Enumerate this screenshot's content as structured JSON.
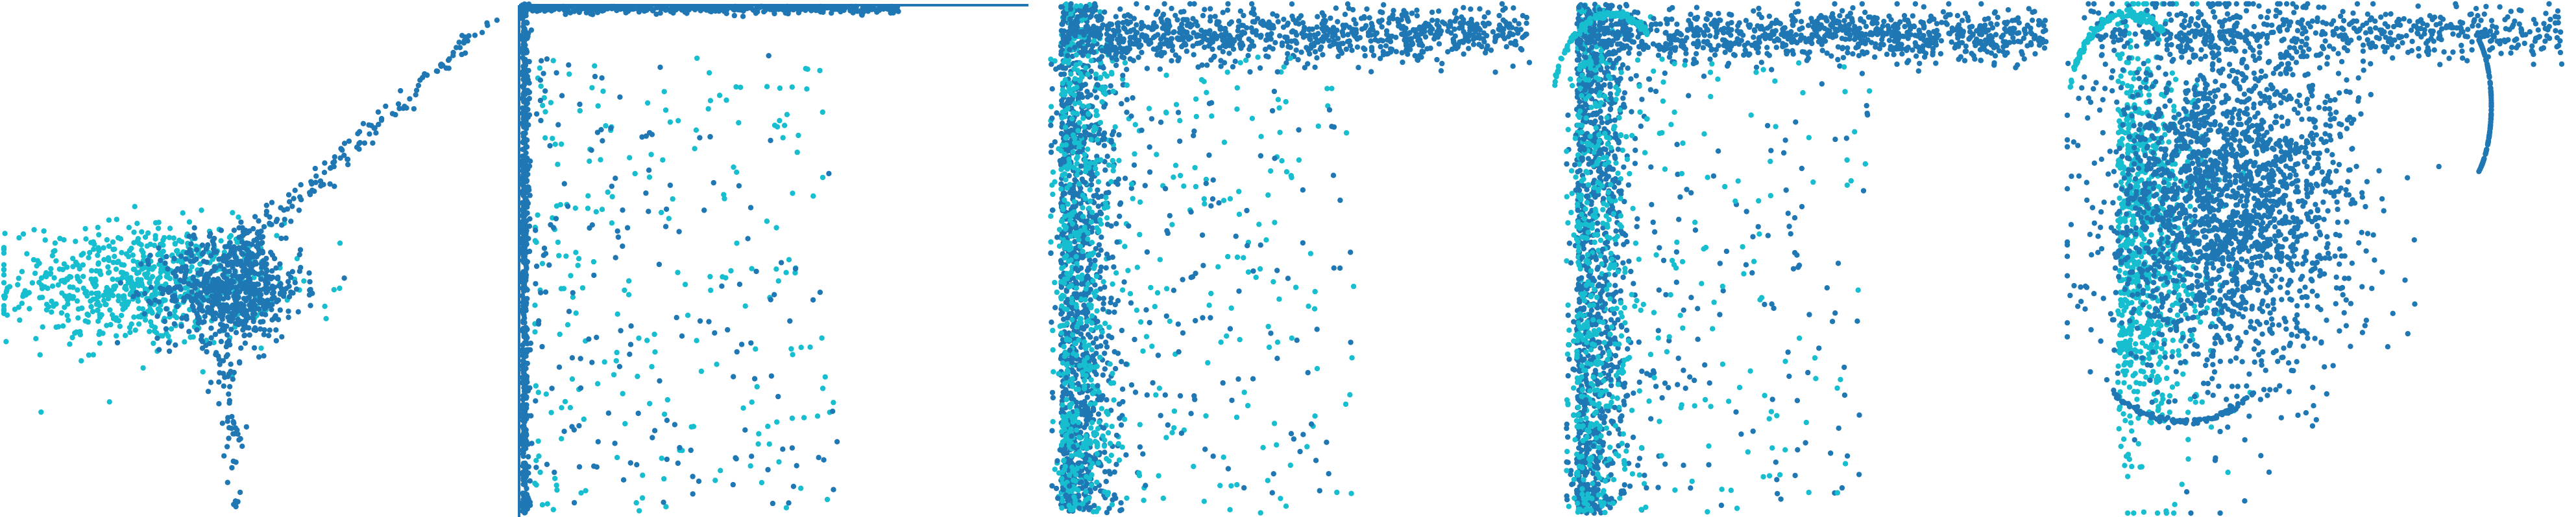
{
  "colors": {
    "series_a": "#1f77b4",
    "series_b": "#17becf",
    "background": "#ffffff"
  },
  "chart_data": [
    {
      "type": "scatter",
      "title": "",
      "axes_visible": false,
      "grid": false,
      "xlim": [
        -10,
        10
      ],
      "ylim": [
        -10,
        10
      ],
      "series": [
        {
          "color": "#17becf",
          "values": [],
          "shape": "cloud",
          "center": [
            -4.5,
            -1.0
          ],
          "spread": [
            2.6,
            1.2
          ],
          "count": 700
        },
        {
          "color": "#1f77b4",
          "values": [],
          "shape": "cloud",
          "center": [
            -1.0,
            -1.2
          ],
          "spread": [
            1.4,
            1.0
          ],
          "count": 650
        },
        {
          "color": "#1f77b4",
          "values": [],
          "shape": "tail",
          "from": [
            -0.5,
            0.5
          ],
          "to": [
            9.5,
            9.5
          ],
          "count": 160
        },
        {
          "color": "#1f77b4",
          "values": [],
          "shape": "tail",
          "from": [
            -1.2,
            -3.5
          ],
          "to": [
            -0.8,
            -9.8
          ],
          "count": 60
        }
      ]
    },
    {
      "type": "scatter",
      "title": "",
      "axes_visible": false,
      "grid": false,
      "xlim": [
        0,
        1
      ],
      "ylim": [
        0,
        1
      ],
      "series": [
        {
          "color": "#1f77b4",
          "values": [],
          "shape": "edge-left",
          "count": 600
        },
        {
          "color": "#1f77b4",
          "values": [],
          "shape": "edge-top",
          "count": 500
        },
        {
          "color": "#17becf",
          "values": [],
          "shape": "sparse",
          "count": 220
        },
        {
          "color": "#1f77b4",
          "values": [],
          "shape": "sparse",
          "count": 160
        }
      ]
    },
    {
      "type": "scatter",
      "title": "",
      "axes_visible": false,
      "grid": false,
      "xlim": [
        0,
        1
      ],
      "ylim": [
        0,
        1
      ],
      "series": [
        {
          "color": "#1f77b4",
          "values": [],
          "shape": "band-left",
          "count": 1100
        },
        {
          "color": "#17becf",
          "values": [],
          "shape": "band-left",
          "count": 500
        },
        {
          "color": "#1f77b4",
          "values": [],
          "shape": "band-top",
          "count": 900
        },
        {
          "color": "#17becf",
          "values": [],
          "shape": "sparse",
          "count": 260
        },
        {
          "color": "#1f77b4",
          "values": [],
          "shape": "sparse",
          "count": 200
        }
      ]
    },
    {
      "type": "scatter",
      "title": "",
      "axes_visible": false,
      "grid": false,
      "xlim": [
        0,
        1
      ],
      "ylim": [
        0,
        1
      ],
      "series": [
        {
          "color": "#1f77b4",
          "values": [],
          "shape": "band-left",
          "count": 1000
        },
        {
          "color": "#17becf",
          "values": [],
          "shape": "band-left",
          "count": 450
        },
        {
          "color": "#1f77b4",
          "values": [],
          "shape": "band-top",
          "count": 900
        },
        {
          "color": "#17becf",
          "values": [],
          "shape": "arc-top-left",
          "count": 120
        },
        {
          "color": "#1f77b4",
          "values": [],
          "shape": "sparse",
          "count": 220
        },
        {
          "color": "#17becf",
          "values": [],
          "shape": "sparse",
          "count": 200
        }
      ]
    },
    {
      "type": "scatter",
      "title": "",
      "axes_visible": false,
      "grid": false,
      "xlim": [
        0,
        1
      ],
      "ylim": [
        0,
        1
      ],
      "series": [
        {
          "color": "#17becf",
          "values": [],
          "shape": "blob-left",
          "count": 900
        },
        {
          "color": "#1f77b4",
          "values": [],
          "shape": "blob-main",
          "count": 2200
        },
        {
          "color": "#1f77b4",
          "values": [],
          "shape": "band-top",
          "count": 500
        },
        {
          "color": "#17becf",
          "values": [],
          "shape": "arc-top-left",
          "count": 120
        },
        {
          "color": "#1f77b4",
          "values": [],
          "shape": "arc-bottom",
          "count": 100
        },
        {
          "color": "#1f77b4",
          "values": [],
          "shape": "arc-right",
          "count": 120
        }
      ]
    }
  ]
}
